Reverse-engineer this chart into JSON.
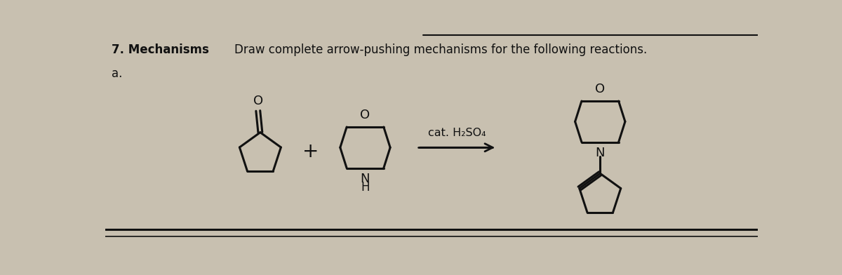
{
  "title": "7. Mechanisms",
  "subtitle": "Draw complete arrow-pushing mechanisms for the following reactions.",
  "part_label": "a.",
  "reagent_label": "cat. H₂SO₄",
  "bg_color": "#c8c0b0",
  "text_color": "#111111",
  "line_color": "#111111",
  "title_fontsize": 12,
  "subtitle_fontsize": 12,
  "label_fontsize": 12
}
